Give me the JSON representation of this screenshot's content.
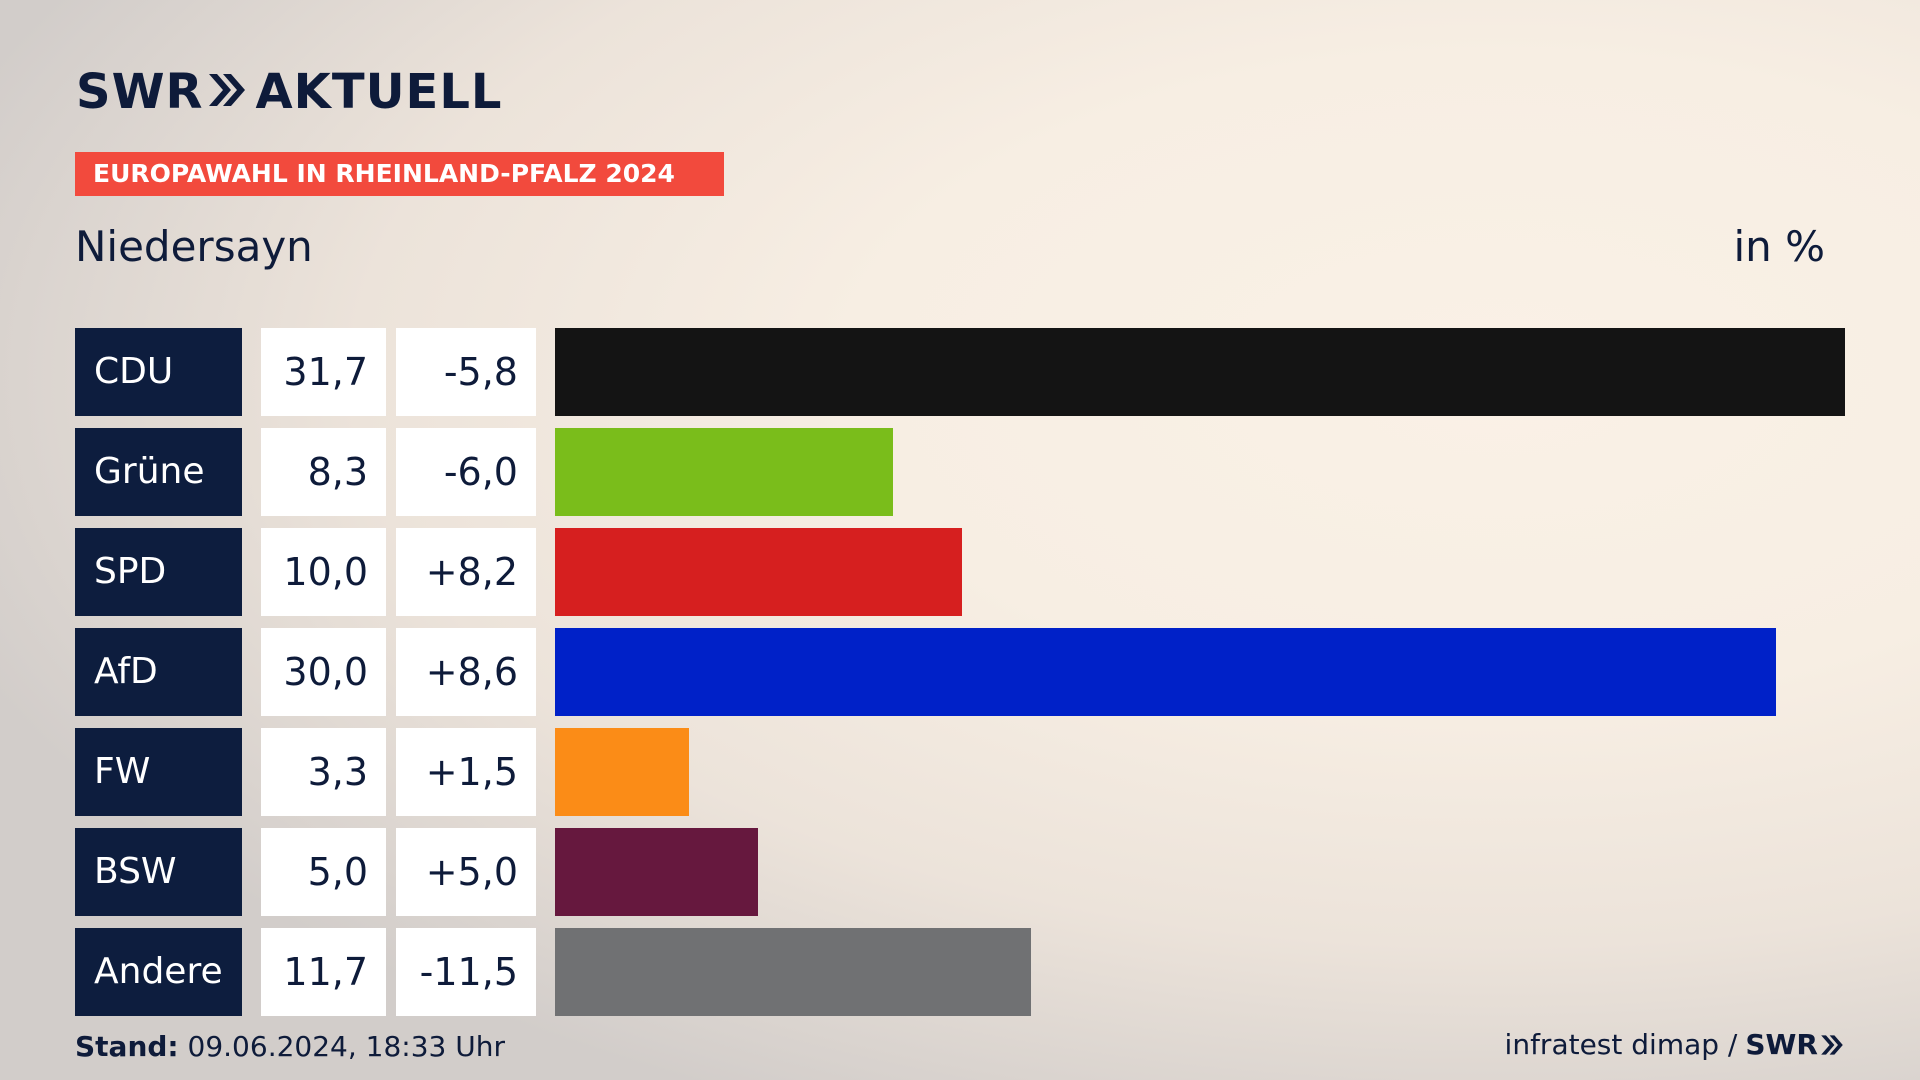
{
  "header": {
    "logo_left": "SWR",
    "logo_right": "AKTUELL",
    "banner": "EUROPAWAHL IN RHEINLAND-PFALZ 2024",
    "place": "Niedersayn",
    "unit": "in %"
  },
  "chart_data": {
    "type": "bar",
    "orientation": "horizontal",
    "title": "EUROPAWAHL IN RHEINLAND-PFALZ 2024",
    "subtitle": "Niedersayn",
    "unit": "in %",
    "categories": [
      "CDU",
      "Grüne",
      "SPD",
      "AfD",
      "FW",
      "BSW",
      "Andere"
    ],
    "values": [
      31.7,
      8.3,
      10.0,
      30.0,
      3.3,
      5.0,
      11.7
    ],
    "value_labels": [
      "31,7",
      "8,3",
      "10,0",
      "30,0",
      "3,3",
      "5,0",
      "11,7"
    ],
    "diff_labels": [
      "-5,8",
      "-6,0",
      "+8,2",
      "+8,6",
      "+1,5",
      "+5,0",
      "-11,5"
    ],
    "colors": [
      "#141414",
      "#7abd1b",
      "#d61f1f",
      "#0021c8",
      "#fb8c17",
      "#66183e",
      "#707173"
    ],
    "xlim": [
      0,
      31.7
    ]
  },
  "footer": {
    "stand_label": "Stand:",
    "stand_value": "09.06.2024, 18:33 Uhr",
    "source": "infratest dimap /",
    "brand": "SWR"
  }
}
